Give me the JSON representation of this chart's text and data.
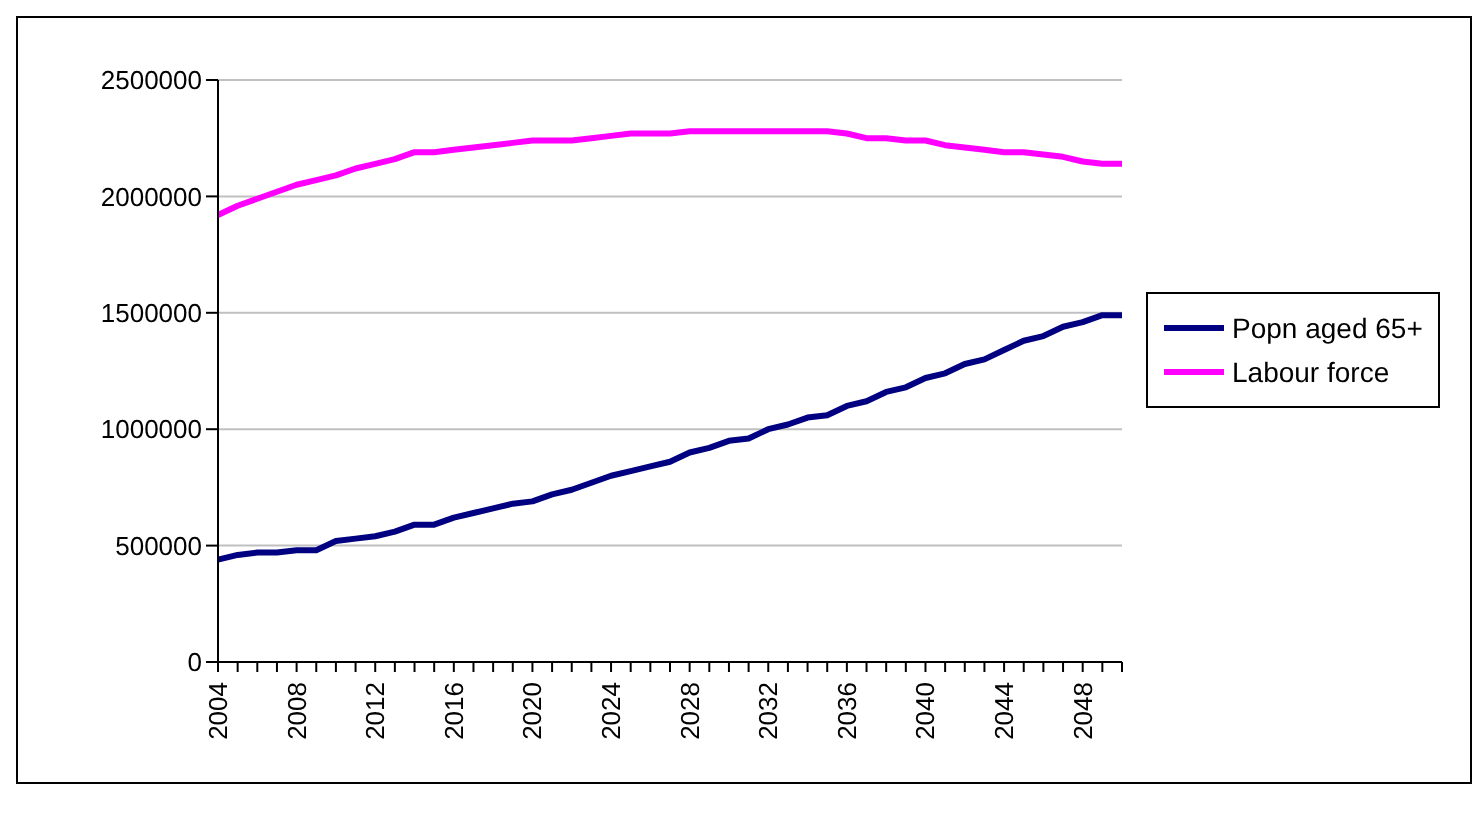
{
  "chart_data": {
    "type": "line",
    "categories": [
      "2004",
      null,
      null,
      null,
      "2008",
      null,
      null,
      null,
      "2012",
      null,
      null,
      null,
      "2016",
      null,
      null,
      null,
      "2020",
      null,
      null,
      null,
      "2024",
      null,
      null,
      null,
      "2028",
      null,
      null,
      null,
      "2032",
      null,
      null,
      null,
      "2036",
      null,
      null,
      null,
      "2040",
      null,
      null,
      null,
      "2044",
      null,
      null,
      null,
      "2048",
      null,
      null
    ],
    "series": [
      {
        "name": "Popn aged 65+",
        "color": "#000080",
        "values": [
          440000,
          460000,
          470000,
          470000,
          480000,
          480000,
          520000,
          530000,
          540000,
          560000,
          590000,
          590000,
          620000,
          640000,
          660000,
          680000,
          690000,
          720000,
          740000,
          770000,
          800000,
          820000,
          840000,
          860000,
          900000,
          920000,
          950000,
          960000,
          1000000,
          1020000,
          1050000,
          1060000,
          1100000,
          1120000,
          1160000,
          1180000,
          1220000,
          1240000,
          1280000,
          1300000,
          1340000,
          1380000,
          1400000,
          1440000,
          1460000,
          1490000,
          1490000
        ]
      },
      {
        "name": "Labour force",
        "color": "#ff00ff",
        "values": [
          1920000,
          1960000,
          1990000,
          2020000,
          2050000,
          2070000,
          2090000,
          2120000,
          2140000,
          2160000,
          2190000,
          2190000,
          2200000,
          2210000,
          2220000,
          2230000,
          2240000,
          2240000,
          2240000,
          2250000,
          2260000,
          2270000,
          2270000,
          2270000,
          2280000,
          2280000,
          2280000,
          2280000,
          2280000,
          2280000,
          2280000,
          2280000,
          2270000,
          2250000,
          2250000,
          2240000,
          2240000,
          2220000,
          2210000,
          2200000,
          2190000,
          2190000,
          2180000,
          2170000,
          2150000,
          2140000,
          2140000
        ]
      }
    ],
    "ylim": [
      0,
      2500000
    ],
    "yticks": [
      0,
      500000,
      1000000,
      1500000,
      2000000,
      2500000
    ],
    "grid": "y",
    "legend": "right",
    "marker": "none",
    "line_style": "solid"
  }
}
